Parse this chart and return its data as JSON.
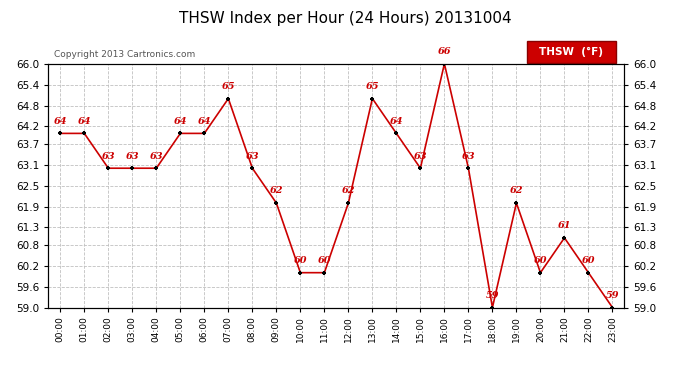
{
  "title": "THSW Index per Hour (24 Hours) 20131004",
  "copyright": "Copyright 2013 Cartronics.com",
  "legend_label": "THSW  (°F)",
  "hours": [
    "00:00",
    "01:00",
    "02:00",
    "03:00",
    "04:00",
    "05:00",
    "06:00",
    "07:00",
    "08:00",
    "09:00",
    "10:00",
    "11:00",
    "12:00",
    "13:00",
    "14:00",
    "15:00",
    "16:00",
    "17:00",
    "18:00",
    "19:00",
    "20:00",
    "21:00",
    "22:00",
    "23:00"
  ],
  "values": [
    64,
    64,
    63,
    63,
    63,
    64,
    64,
    65,
    63,
    62,
    60,
    60,
    62,
    65,
    64,
    63,
    66,
    63,
    59,
    62,
    60,
    61,
    60,
    59
  ],
  "ylim": [
    59.0,
    66.0
  ],
  "yticks": [
    66.0,
    65.4,
    64.8,
    64.2,
    63.7,
    63.1,
    62.5,
    61.9,
    61.3,
    60.8,
    60.2,
    59.6,
    59.0
  ],
  "line_color": "#cc0000",
  "dot_color": "#000000",
  "label_color": "#cc0000",
  "bg_color": "#ffffff",
  "grid_color": "#c0c0c0",
  "title_color": "#000000",
  "copyright_color": "#555555",
  "legend_bg": "#cc0000",
  "legend_text_color": "#ffffff"
}
